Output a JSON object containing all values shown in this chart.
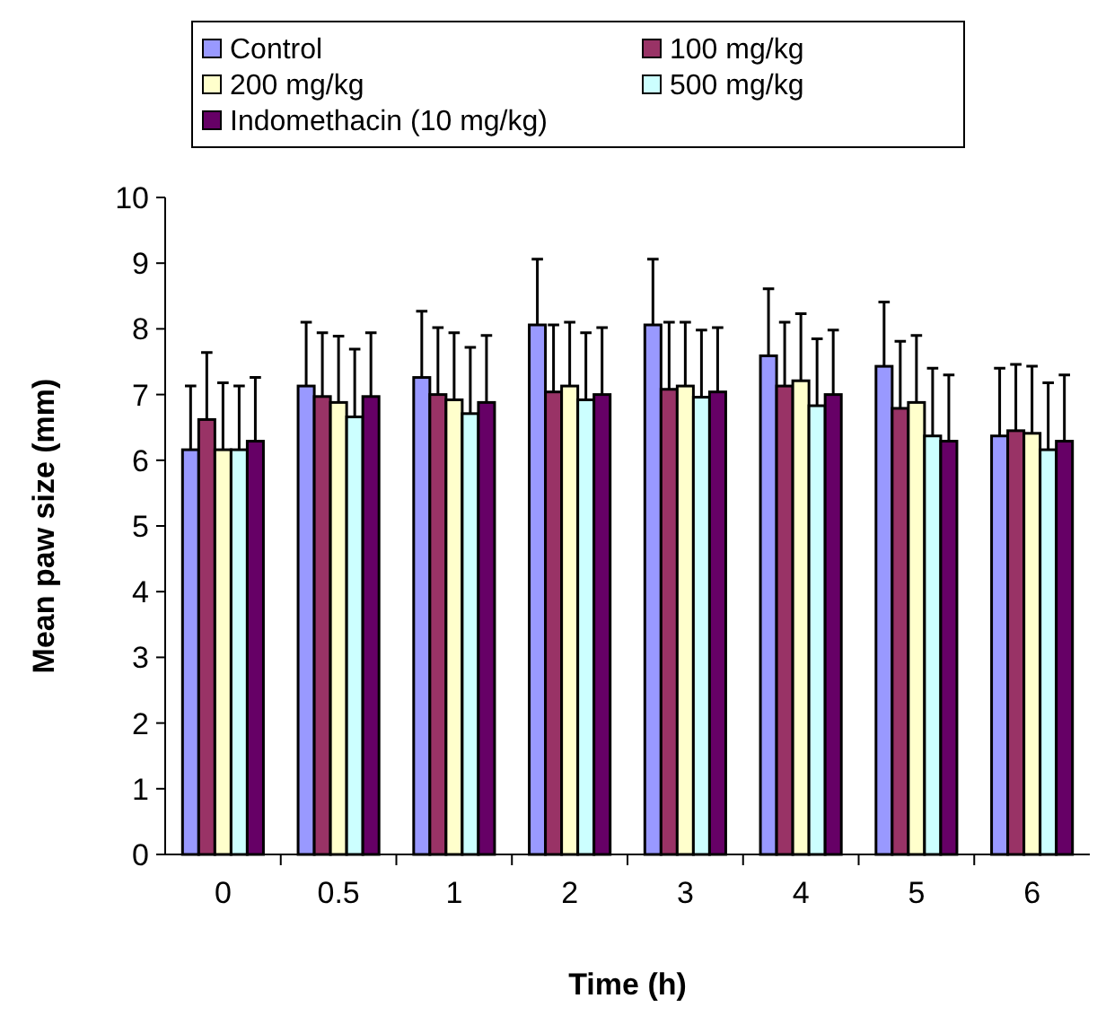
{
  "chart_data": {
    "type": "bar",
    "xlabel": "Time (h)",
    "ylabel": "Mean paw size (mm)",
    "categories": [
      "0",
      "0.5",
      "1",
      "2",
      "3",
      "4",
      "5",
      "6"
    ],
    "ylim": [
      0,
      10
    ],
    "yticks": [
      0,
      1,
      2,
      3,
      4,
      5,
      6,
      7,
      8,
      9,
      10
    ],
    "grid": false,
    "legend": "top",
    "series": [
      {
        "name": "Control",
        "color": "#9999ff",
        "values": [
          6.16,
          7.13,
          7.26,
          8.06,
          8.06,
          7.59,
          7.43,
          6.37
        ],
        "errors": [
          [
            6.16,
            7.13
          ],
          [
            7.13,
            8.1
          ],
          [
            7.26,
            8.27
          ],
          [
            8.06,
            9.06
          ],
          [
            8.06,
            9.06
          ],
          [
            7.59,
            8.61
          ],
          [
            7.43,
            8.41
          ],
          [
            6.37,
            7.4
          ]
        ]
      },
      {
        "name": "100 mg/kg",
        "color": "#993366",
        "values": [
          6.62,
          6.97,
          7.0,
          7.04,
          7.08,
          7.13,
          6.79,
          6.45
        ],
        "errors": [
          [
            6.62,
            7.64
          ],
          [
            6.97,
            7.94
          ],
          [
            7.0,
            8.02
          ],
          [
            7.04,
            8.06
          ],
          [
            7.08,
            8.1
          ],
          [
            7.13,
            8.1
          ],
          [
            6.79,
            7.81
          ],
          [
            6.45,
            7.46
          ]
        ]
      },
      {
        "name": "200 mg/kg",
        "color": "#ffffcc",
        "values": [
          6.16,
          6.88,
          6.92,
          7.13,
          7.13,
          7.21,
          6.88,
          6.41
        ],
        "errors": [
          [
            6.16,
            7.18
          ],
          [
            6.88,
            7.89
          ],
          [
            6.92,
            7.94
          ],
          [
            7.13,
            8.1
          ],
          [
            7.13,
            8.1
          ],
          [
            7.21,
            8.23
          ],
          [
            6.88,
            7.9
          ],
          [
            6.41,
            7.43
          ]
        ]
      },
      {
        "name": "500 mg/kg",
        "color": "#ccffff",
        "values": [
          6.16,
          6.66,
          6.71,
          6.92,
          6.96,
          6.83,
          6.37,
          6.16
        ],
        "errors": [
          [
            6.16,
            7.13
          ],
          [
            6.66,
            7.69
          ],
          [
            6.71,
            7.72
          ],
          [
            6.92,
            7.94
          ],
          [
            6.96,
            7.98
          ],
          [
            6.83,
            7.85
          ],
          [
            6.37,
            7.4
          ],
          [
            6.16,
            7.18
          ]
        ]
      },
      {
        "name": "Indomethacin (10 mg/kg)",
        "color": "#660066",
        "values": [
          6.29,
          6.97,
          6.88,
          7.0,
          7.04,
          7.0,
          6.29,
          6.29
        ],
        "errors": [
          [
            6.29,
            7.26
          ],
          [
            6.97,
            7.94
          ],
          [
            6.88,
            7.9
          ],
          [
            7.0,
            8.02
          ],
          [
            7.04,
            8.02
          ],
          [
            7.0,
            7.98
          ],
          [
            6.29,
            7.3
          ],
          [
            6.29,
            7.3
          ]
        ]
      }
    ]
  }
}
